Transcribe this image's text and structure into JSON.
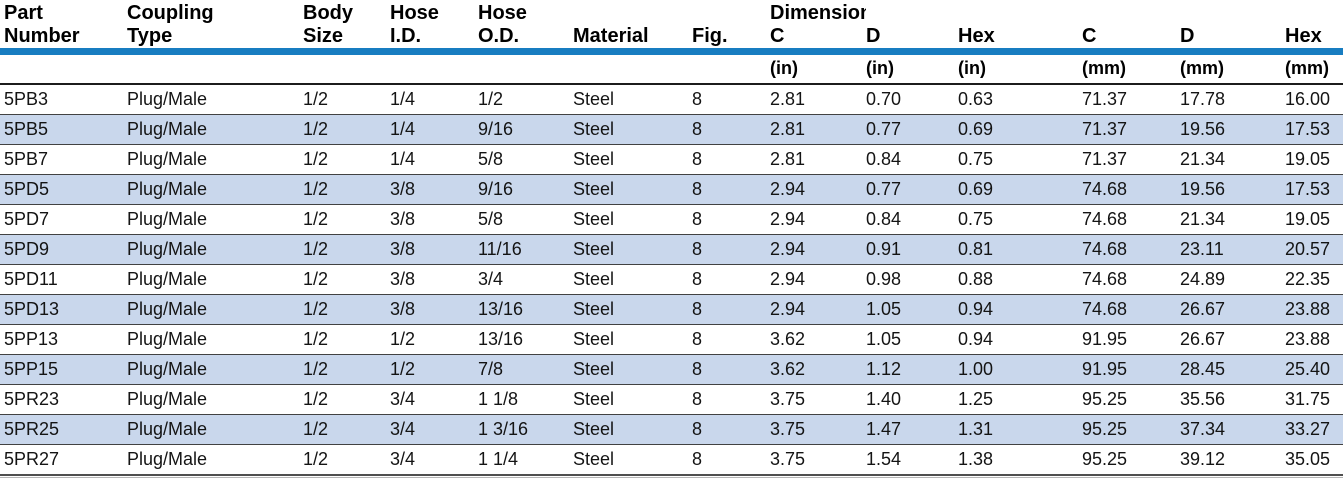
{
  "colors": {
    "header_bar_blue": "#187dc1",
    "row_stripe_blue": "#c9d7ec",
    "row_divider_gray": "#424242",
    "header_text": "#000000",
    "data_text": "#141414"
  },
  "table": {
    "dimensions_group_label": "Dimensions",
    "columns": [
      {
        "id": "part-number",
        "line1": "Part",
        "line2": "Number",
        "unit": ""
      },
      {
        "id": "coupling-type",
        "line1": "Coupling",
        "line2": "Type",
        "unit": ""
      },
      {
        "id": "body-size",
        "line1": "Body",
        "line2": "Size",
        "unit": ""
      },
      {
        "id": "hose-id",
        "line1": "Hose",
        "line2": "I.D.",
        "unit": ""
      },
      {
        "id": "hose-od",
        "line1": "Hose",
        "line2": "O.D.",
        "unit": ""
      },
      {
        "id": "material",
        "line1": "",
        "line2": "Material",
        "unit": ""
      },
      {
        "id": "fig",
        "line1": "",
        "line2": "Fig.",
        "unit": ""
      },
      {
        "id": "c-in",
        "line1": "Dimensions",
        "line2": "C",
        "unit": "(in)"
      },
      {
        "id": "d-in",
        "line1": "",
        "line2": "D",
        "unit": "(in)"
      },
      {
        "id": "hex-in",
        "line1": "",
        "line2": "Hex",
        "unit": "(in)"
      },
      {
        "id": "c-mm",
        "line1": "",
        "line2": "C",
        "unit": "(mm)"
      },
      {
        "id": "d-mm",
        "line1": "",
        "line2": "D",
        "unit": "(mm)"
      },
      {
        "id": "hex-mm",
        "line1": "",
        "line2": "Hex",
        "unit": "(mm)"
      }
    ],
    "rows": [
      [
        "5PB3",
        "Plug/Male",
        "1/2",
        "1/4",
        "1/2",
        "Steel",
        "8",
        "2.81",
        "0.70",
        "0.63",
        "71.37",
        "17.78",
        "16.00"
      ],
      [
        "5PB5",
        "Plug/Male",
        "1/2",
        "1/4",
        "9/16",
        "Steel",
        "8",
        "2.81",
        "0.77",
        "0.69",
        "71.37",
        "19.56",
        "17.53"
      ],
      [
        "5PB7",
        "Plug/Male",
        "1/2",
        "1/4",
        "5/8",
        "Steel",
        "8",
        "2.81",
        "0.84",
        "0.75",
        "71.37",
        "21.34",
        "19.05"
      ],
      [
        "5PD5",
        "Plug/Male",
        "1/2",
        "3/8",
        "9/16",
        "Steel",
        "8",
        "2.94",
        "0.77",
        "0.69",
        "74.68",
        "19.56",
        "17.53"
      ],
      [
        "5PD7",
        "Plug/Male",
        "1/2",
        "3/8",
        "5/8",
        "Steel",
        "8",
        "2.94",
        "0.84",
        "0.75",
        "74.68",
        "21.34",
        "19.05"
      ],
      [
        "5PD9",
        "Plug/Male",
        "1/2",
        "3/8",
        "11/16",
        "Steel",
        "8",
        "2.94",
        "0.91",
        "0.81",
        "74.68",
        "23.11",
        "20.57"
      ],
      [
        "5PD11",
        "Plug/Male",
        "1/2",
        "3/8",
        "3/4",
        "Steel",
        "8",
        "2.94",
        "0.98",
        "0.88",
        "74.68",
        "24.89",
        "22.35"
      ],
      [
        "5PD13",
        "Plug/Male",
        "1/2",
        "3/8",
        "13/16",
        "Steel",
        "8",
        "2.94",
        "1.05",
        "0.94",
        "74.68",
        "26.67",
        "23.88"
      ],
      [
        "5PP13",
        "Plug/Male",
        "1/2",
        "1/2",
        "13/16",
        "Steel",
        "8",
        "3.62",
        "1.05",
        "0.94",
        "91.95",
        "26.67",
        "23.88"
      ],
      [
        "5PP15",
        "Plug/Male",
        "1/2",
        "1/2",
        "7/8",
        "Steel",
        "8",
        "3.62",
        "1.12",
        "1.00",
        "91.95",
        "28.45",
        "25.40"
      ],
      [
        "5PR23",
        "Plug/Male",
        "1/2",
        "3/4",
        "1 1/8",
        "Steel",
        "8",
        "3.75",
        "1.40",
        "1.25",
        "95.25",
        "35.56",
        "31.75"
      ],
      [
        "5PR25",
        "Plug/Male",
        "1/2",
        "3/4",
        "1 3/16",
        "Steel",
        "8",
        "3.75",
        "1.47",
        "1.31",
        "95.25",
        "37.34",
        "33.27"
      ],
      [
        "5PR27",
        "Plug/Male",
        "1/2",
        "3/4",
        "1 1/4",
        "Steel",
        "8",
        "3.75",
        "1.54",
        "1.38",
        "95.25",
        "39.12",
        "35.05"
      ]
    ]
  }
}
